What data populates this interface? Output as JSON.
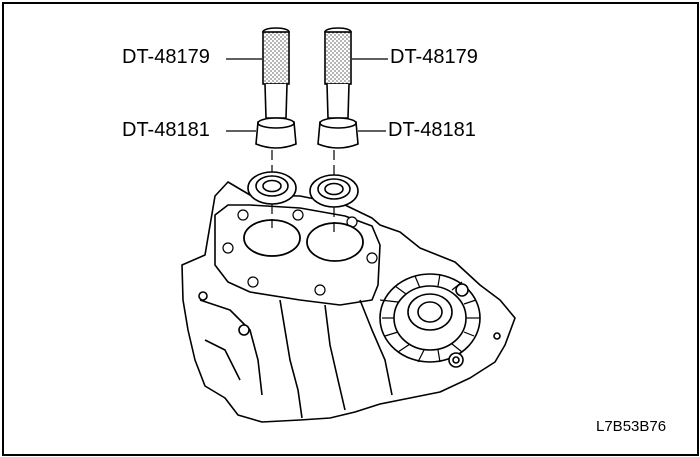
{
  "labels": {
    "tool_left_top": "DT-48179",
    "tool_right_top": "DT-48179",
    "tool_left_mid": "DT-48181",
    "tool_right_mid": "DT-48181"
  },
  "figure_code": "L7B53B76"
}
